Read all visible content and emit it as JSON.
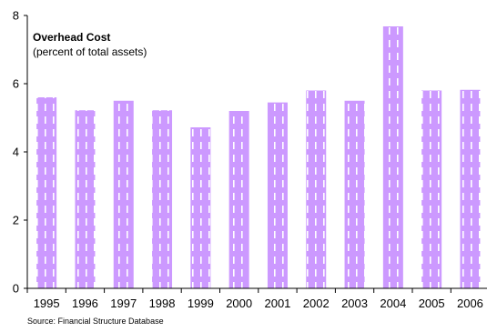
{
  "chart_data": {
    "type": "bar",
    "title": "Overhead Cost",
    "subtitle": "(percent of total assets)",
    "source": "Source: Financial Structure Database",
    "categories": [
      "1995",
      "1996",
      "1997",
      "1998",
      "1999",
      "2000",
      "2001",
      "2002",
      "2003",
      "2004",
      "2005",
      "2006"
    ],
    "values": [
      5.6,
      5.22,
      5.5,
      5.22,
      4.72,
      5.2,
      5.45,
      5.8,
      5.5,
      7.68,
      5.8,
      5.82
    ],
    "ylim": [
      0,
      8
    ],
    "yticks": [
      0,
      2,
      4,
      6,
      8
    ],
    "xlabel": "",
    "ylabel": "",
    "grid": false,
    "legend": "none",
    "bar_color": "#cc99ff",
    "bar_pattern_color": "#ffffff"
  }
}
